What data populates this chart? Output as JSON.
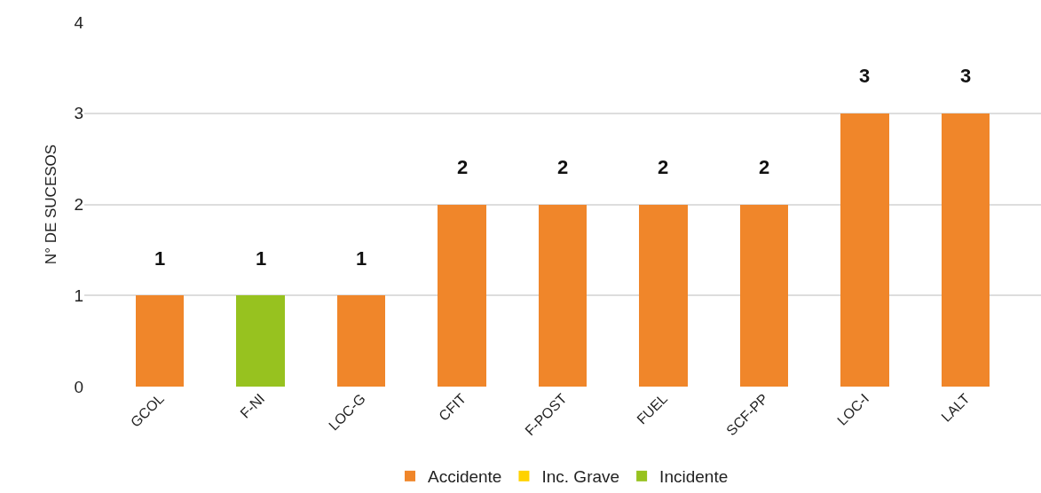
{
  "chart_data": {
    "type": "bar",
    "stacked": true,
    "categories": [
      "GCOL",
      "F-NI",
      "LOC-G",
      "CFIT",
      "F-POST",
      "FUEL",
      "SCF-PP",
      "LOC-I",
      "LALT"
    ],
    "series": [
      {
        "name": "Accidente",
        "color": "#f0862a",
        "values": [
          1,
          null,
          1,
          2,
          2,
          2,
          2,
          3,
          3
        ]
      },
      {
        "name": "Inc. Grave",
        "color": "#ffd200",
        "values": [
          null,
          null,
          null,
          null,
          null,
          null,
          null,
          null,
          null
        ]
      },
      {
        "name": "Incidente",
        "color": "#97c21f",
        "values": [
          null,
          1,
          null,
          null,
          null,
          null,
          null,
          null,
          null
        ]
      }
    ],
    "totals": [
      "1",
      "1",
      "1",
      "2",
      "2",
      "2",
      "2",
      "3",
      "3"
    ],
    "ylabel": "N° DE SUCESOS",
    "ylim": [
      0,
      4
    ],
    "yticks": [
      0,
      1,
      2,
      3,
      4
    ],
    "grid": "y",
    "legend": "bottom"
  }
}
